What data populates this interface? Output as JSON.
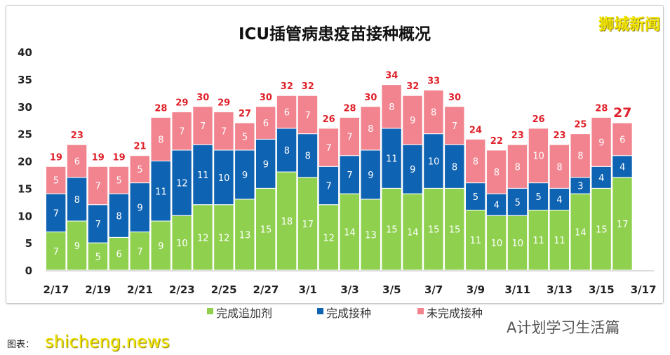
{
  "watermarks": {
    "brand": "狮城新闻",
    "site": "shicheng.news",
    "wechat": "A计划学习生活篇",
    "source": "图表："
  },
  "chart_data": {
    "type": "bar",
    "stacked": true,
    "title": "ICU插管病患疫苗接种概况",
    "xlabel": "",
    "ylabel": "",
    "ylim": [
      0,
      40
    ],
    "yticks": [
      0,
      5,
      10,
      15,
      20,
      25,
      30,
      35,
      40
    ],
    "grid": false,
    "legend": "bottom",
    "categories": [
      "2/17",
      "2/18",
      "2/19",
      "2/20",
      "2/21",
      "2/22",
      "2/23",
      "2/24",
      "2/25",
      "2/26",
      "2/27",
      "2/28",
      "3/1",
      "3/2",
      "3/3",
      "3/4",
      "3/5",
      "3/6",
      "3/7",
      "3/8",
      "3/9",
      "3/10",
      "3/11",
      "3/12",
      "3/13",
      "3/14",
      "3/15",
      "3/16"
    ],
    "xtick_labels": [
      "2/17",
      "2/19",
      "2/21",
      "2/23",
      "2/25",
      "2/27",
      "3/1",
      "3/3",
      "3/5",
      "3/7",
      "3/9",
      "3/11",
      "3/13",
      "3/15",
      "3/17"
    ],
    "series": [
      {
        "name": "完成追加剂",
        "color": "#8fd14f",
        "values": [
          7,
          9,
          5,
          6,
          7,
          9,
          10,
          12,
          12,
          13,
          15,
          18,
          17,
          12,
          14,
          13,
          15,
          14,
          15,
          15,
          11,
          10,
          10,
          11,
          11,
          14,
          15,
          17
        ]
      },
      {
        "name": "完成接种",
        "color": "#0f63b3",
        "values": [
          7,
          8,
          7,
          8,
          9,
          11,
          12,
          11,
          10,
          9,
          9,
          8,
          8,
          7,
          7,
          9,
          11,
          9,
          10,
          8,
          5,
          4,
          5,
          5,
          4,
          3,
          4,
          4
        ]
      },
      {
        "name": "未完成接种",
        "color": "#f2848f",
        "values": [
          5,
          6,
          7,
          5,
          5,
          8,
          7,
          7,
          7,
          5,
          6,
          6,
          7,
          7,
          7,
          8,
          8,
          9,
          8,
          7,
          8,
          8,
          8,
          10,
          8,
          8,
          9,
          6
        ]
      }
    ],
    "totals": [
      19,
      23,
      19,
      19,
      21,
      28,
      29,
      30,
      29,
      27,
      30,
      32,
      32,
      26,
      28,
      30,
      34,
      32,
      33,
      30,
      24,
      22,
      23,
      26,
      23,
      25,
      28,
      27
    ],
    "total_label_color": "#e0202a"
  }
}
